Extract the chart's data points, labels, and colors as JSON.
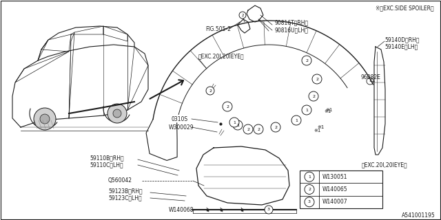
{
  "bg_color": "#ffffff",
  "line_color": "#1a1a1a",
  "text_color": "#1a1a1a",
  "diagram_number": "A541001195",
  "font_size": 5.5,
  "legend": [
    {
      "num": 1,
      "code": "W130051"
    },
    {
      "num": 2,
      "code": "W140065"
    },
    {
      "num": 3,
      "code": "W140007"
    }
  ],
  "labels": {
    "exc_side_spoiler": "※EXC.SIDE SPOILER〉",
    "fig_ref": "FIG.505-2",
    "part_90816T": "90816T＜RH＞",
    "part_90816U": "90816U＜LH＞",
    "part_59140D": "59140D＜RH＞",
    "part_59140E": "59140E＜LH＞",
    "part_96082E": "96082E",
    "exc_top": "＜EXC.20I,20IEYE＞",
    "exc_bot": "＜EXC.20I,20IEYE＞",
    "part_0310S": "0310S",
    "part_W300029": "W300029",
    "part_59110B": "59110B＜RH＞",
    "part_59110C": "59110C＜LH＞",
    "part_Q560042": "Q560042",
    "part_59123B": "59123B＜RH＞",
    "part_59123C": "59123C＜LH＞",
    "part_W140068": "W140068"
  }
}
